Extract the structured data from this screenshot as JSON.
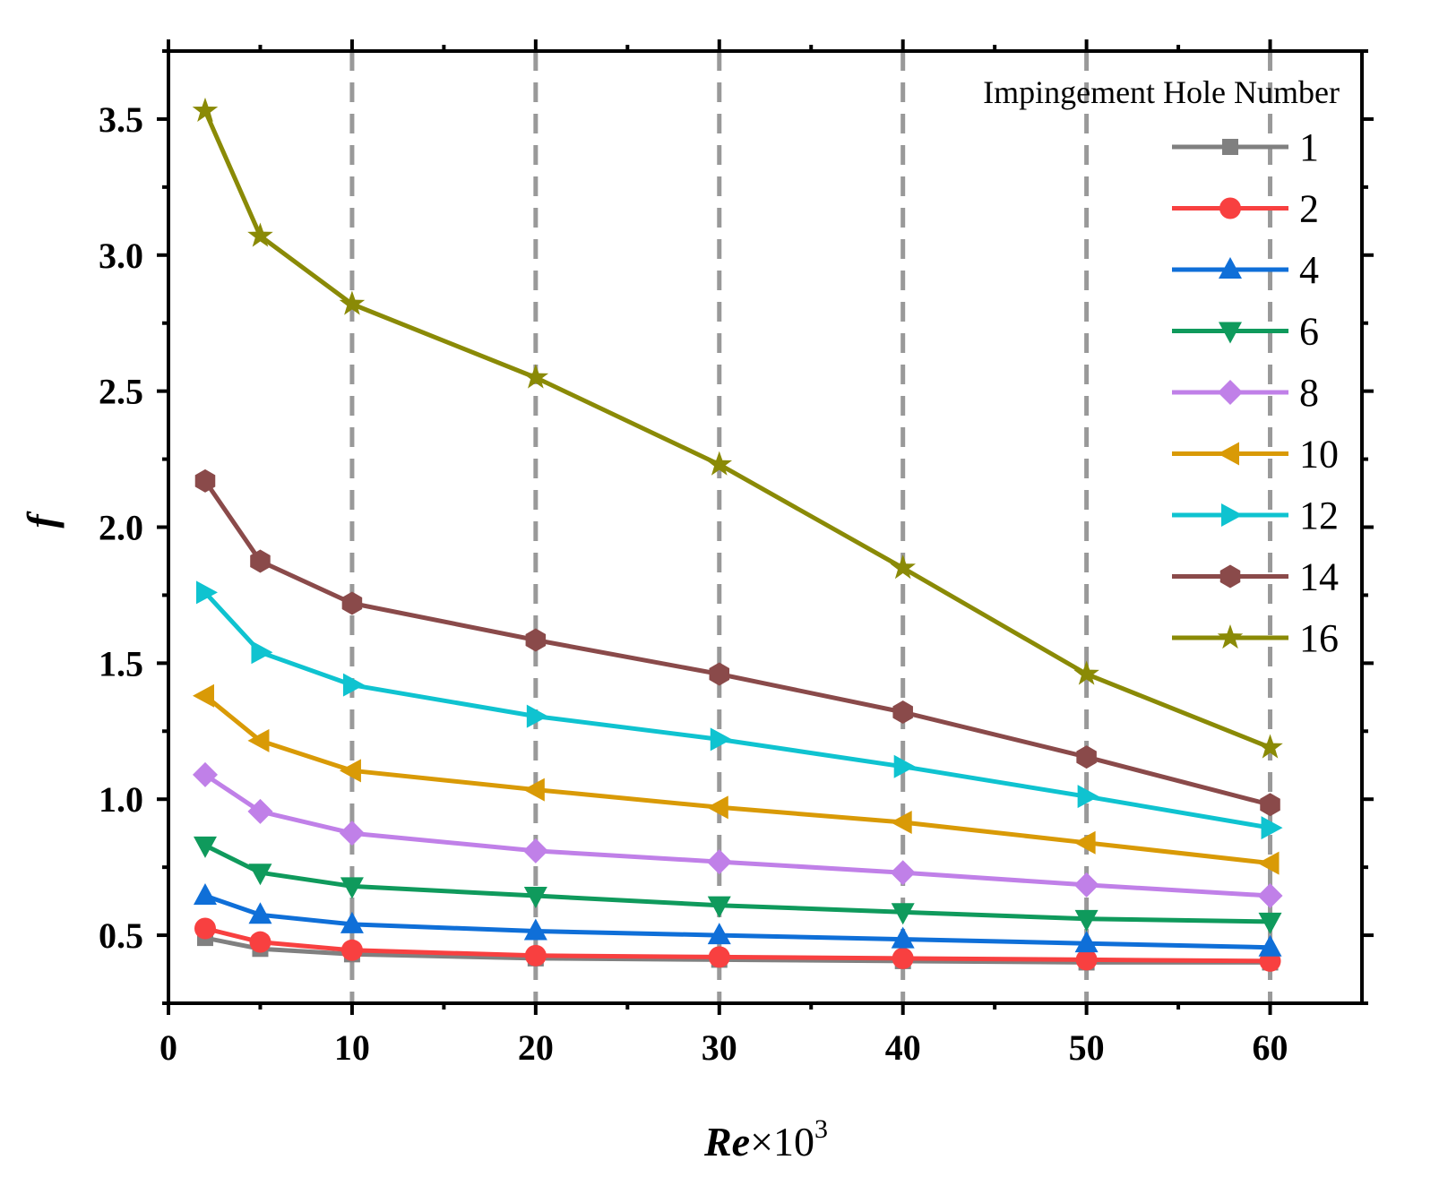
{
  "chart_data": {
    "type": "line",
    "title": "",
    "xlabel": "Re×10^3",
    "xlabel_main": "Re",
    "xlabel_times": "×10",
    "xlabel_exp": "3",
    "ylabel": "f",
    "xlim": [
      0,
      65
    ],
    "ylim": [
      0.25,
      3.75
    ],
    "xticks": [
      0,
      10,
      20,
      30,
      40,
      50,
      60
    ],
    "yticks": [
      0.5,
      1.0,
      1.5,
      2.0,
      2.5,
      3.0,
      3.5
    ],
    "xtick_labels": [
      "0",
      "10",
      "20",
      "30",
      "40",
      "50",
      "60"
    ],
    "ytick_labels": [
      "0.5",
      "1.0",
      "1.5",
      "2.0",
      "2.5",
      "3.0",
      "3.5"
    ],
    "gridlines_x": [
      10,
      20,
      30,
      40,
      50,
      60
    ],
    "legend_title": "Impingement Hole Number",
    "legend_position": "top-right",
    "x": [
      2,
      5,
      10,
      20,
      30,
      40,
      50,
      60
    ],
    "series": [
      {
        "name": "1",
        "color": "#808080",
        "marker": "square",
        "values": [
          0.49,
          0.45,
          0.43,
          0.415,
          0.41,
          0.405,
          0.4,
          0.4
        ]
      },
      {
        "name": "2",
        "color": "#f84040",
        "marker": "circle",
        "values": [
          0.525,
          0.475,
          0.445,
          0.425,
          0.42,
          0.415,
          0.41,
          0.405
        ]
      },
      {
        "name": "4",
        "color": "#0f6fd8",
        "marker": "triangle-up",
        "values": [
          0.645,
          0.575,
          0.54,
          0.515,
          0.5,
          0.485,
          0.47,
          0.455
        ]
      },
      {
        "name": "6",
        "color": "#0f9a5c",
        "marker": "triangle-down",
        "values": [
          0.83,
          0.73,
          0.68,
          0.645,
          0.61,
          0.585,
          0.56,
          0.55
        ]
      },
      {
        "name": "8",
        "color": "#c080e8",
        "marker": "diamond",
        "values": [
          1.09,
          0.955,
          0.875,
          0.81,
          0.77,
          0.73,
          0.685,
          0.645
        ]
      },
      {
        "name": "10",
        "color": "#d99a06",
        "marker": "triangle-left",
        "values": [
          1.38,
          1.215,
          1.105,
          1.035,
          0.97,
          0.915,
          0.84,
          0.765
        ]
      },
      {
        "name": "12",
        "color": "#0fc3d0",
        "marker": "triangle-right",
        "values": [
          1.76,
          1.54,
          1.42,
          1.305,
          1.22,
          1.12,
          1.01,
          0.895
        ]
      },
      {
        "name": "14",
        "color": "#8a4a4a",
        "marker": "hexagon",
        "values": [
          2.17,
          1.875,
          1.72,
          1.585,
          1.46,
          1.32,
          1.155,
          0.98
        ]
      },
      {
        "name": "16",
        "color": "#8a8a06",
        "marker": "star",
        "values": [
          3.53,
          3.07,
          2.82,
          2.55,
          2.23,
          1.85,
          1.46,
          1.19
        ]
      }
    ]
  }
}
